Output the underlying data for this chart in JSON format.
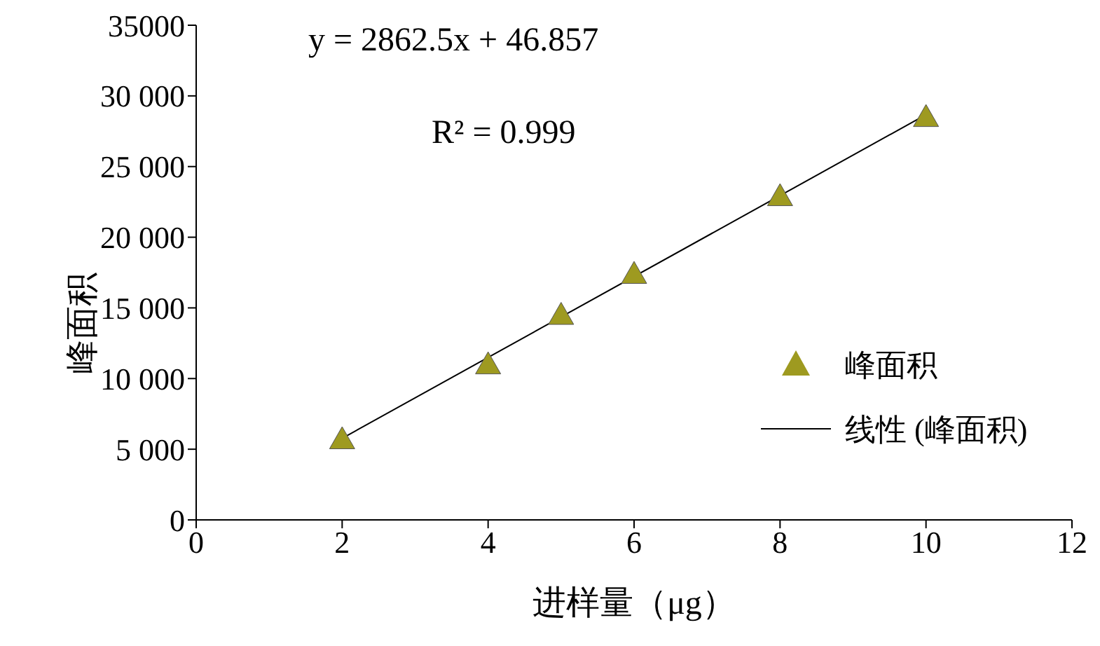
{
  "chart_data": {
    "type": "scatter",
    "xlabel": "进样量（μg）",
    "ylabel": "峰面积",
    "annotations": [
      "y = 2862.5x + 46.857",
      "R² = 0.999"
    ],
    "series": [
      {
        "name": "峰面积",
        "color": "#9e9a20",
        "x": [
          2,
          4,
          5,
          6,
          8,
          10
        ],
        "values": [
          5700,
          11000,
          14500,
          17400,
          22900,
          28500
        ],
        "marker": "triangle"
      },
      {
        "name": "线性 (峰面积)",
        "type": "line",
        "color": "#000000",
        "x": [
          2,
          10
        ],
        "values": [
          5770,
          28670
        ],
        "marker": "none"
      }
    ],
    "xlim": [
      0,
      12
    ],
    "xticks": [
      0,
      2,
      4,
      6,
      8,
      10,
      12
    ],
    "ylim": [
      0,
      35000
    ],
    "yticks": [
      0,
      {
        "value": 5000,
        "label": "5 000"
      },
      {
        "value": 10000,
        "label": "10 000"
      },
      {
        "value": 15000,
        "label": "15 000"
      },
      {
        "value": 20000,
        "label": "20 000"
      },
      {
        "value": 25000,
        "label": "25 000"
      },
      {
        "value": 30000,
        "label": "30 000"
      },
      35000
    ],
    "grid": false,
    "legend": "right"
  }
}
